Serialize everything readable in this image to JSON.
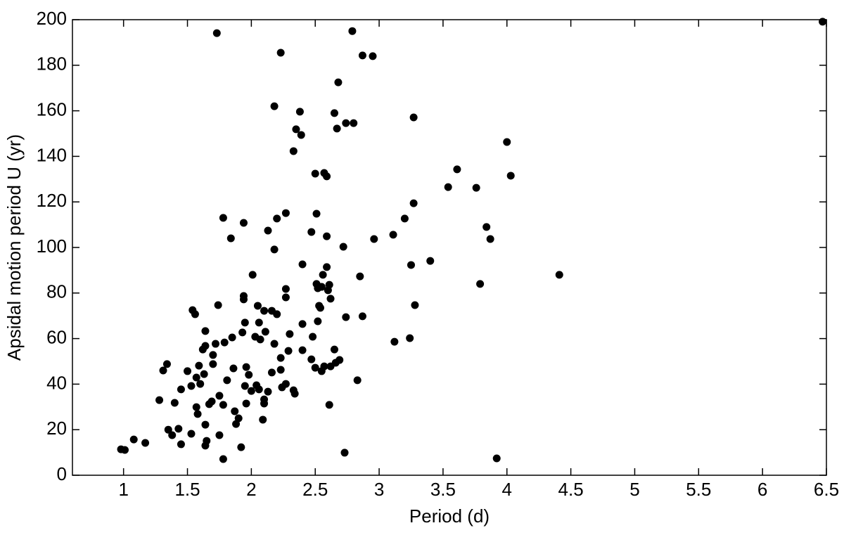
{
  "chart_data": {
    "type": "scatter",
    "xlabel": "Period (d)",
    "ylabel": "Apsidal motion period  U (yr)",
    "color": "#000000",
    "xlim": [
      0.6,
      6.5
    ],
    "xticks": [
      1,
      1.5,
      2,
      2.5,
      3,
      3.5,
      4,
      4.5,
      5,
      5.5,
      6,
      6.5
    ],
    "ylim": [
      0,
      200
    ],
    "yticks": [
      0,
      20,
      40,
      60,
      80,
      100,
      120,
      140,
      160,
      180,
      200
    ],
    "x": [
      0.98,
      1.01,
      1.08,
      1.17,
      1.28,
      1.31,
      1.34,
      1.35,
      1.38,
      1.4,
      1.43,
      1.45,
      1.45,
      1.5,
      1.53,
      1.53,
      1.54,
      1.56,
      1.57,
      1.57,
      1.58,
      1.59,
      1.6,
      1.62,
      1.63,
      1.64,
      1.64,
      1.64,
      1.64,
      1.65,
      1.67,
      1.69,
      1.7,
      1.7,
      1.72,
      1.73,
      1.74,
      1.75,
      1.75,
      1.78,
      1.78,
      1.78,
      1.79,
      1.81,
      1.84,
      1.85,
      1.86,
      1.87,
      1.88,
      1.9,
      1.92,
      1.93,
      1.94,
      1.94,
      1.94,
      1.95,
      1.95,
      1.96,
      1.96,
      1.98,
      2.0,
      2.01,
      2.03,
      2.04,
      2.05,
      2.06,
      2.06,
      2.07,
      2.09,
      2.1,
      2.1,
      2.1,
      2.11,
      2.13,
      2.13,
      2.16,
      2.16,
      2.18,
      2.18,
      2.18,
      2.2,
      2.2,
      2.23,
      2.23,
      2.23,
      2.24,
      2.27,
      2.27,
      2.27,
      2.27,
      2.29,
      2.3,
      2.33,
      2.33,
      2.34,
      2.35,
      2.38,
      2.39,
      2.4,
      2.4,
      2.4,
      2.47,
      2.47,
      2.48,
      2.5,
      2.5,
      2.51,
      2.51,
      2.52,
      2.52,
      2.53,
      2.54,
      2.55,
      2.55,
      2.56,
      2.57,
      2.57,
      2.59,
      2.59,
      2.59,
      2.6,
      2.61,
      2.61,
      2.62,
      2.62,
      2.65,
      2.65,
      2.66,
      2.67,
      2.68,
      2.69,
      2.72,
      2.73,
      2.74,
      2.74,
      2.79,
      2.8,
      2.83,
      2.85,
      2.87,
      2.87,
      2.95,
      2.96,
      3.11,
      3.12,
      3.2,
      3.24,
      3.25,
      3.27,
      3.27,
      3.28,
      3.4,
      3.54,
      3.61,
      3.76,
      3.79,
      3.84,
      3.87,
      3.92,
      4.0,
      4.03,
      4.41,
      6.47
    ],
    "values": [
      11.4,
      11.1,
      15.7,
      14.2,
      33,
      46,
      48.8,
      20,
      17.6,
      31.8,
      20.4,
      13.6,
      37.7,
      45.7,
      39.2,
      18.2,
      72.5,
      70.7,
      42.9,
      29.9,
      26.9,
      48.1,
      40.1,
      55.2,
      44.4,
      56.8,
      63.3,
      22.2,
      13,
      15.1,
      31.2,
      32.4,
      48.8,
      52.8,
      57.7,
      194.1,
      74.7,
      34.9,
      17.6,
      113,
      7.1,
      30.9,
      58.3,
      41.7,
      104,
      60.5,
      46.9,
      28.1,
      22.5,
      25,
      12.3,
      62.7,
      110.8,
      78.7,
      77.2,
      67,
      39.2,
      31.5,
      47.5,
      44.1,
      37,
      88,
      60.8,
      39.5,
      74.4,
      37.7,
      67,
      59.6,
      24.4,
      31.5,
      33.3,
      72.2,
      63,
      36.7,
      107.4,
      72.2,
      45.1,
      162,
      99.1,
      57.7,
      112.7,
      70.7,
      185.5,
      51.5,
      46.3,
      38.6,
      115.1,
      78.1,
      81.8,
      40.1,
      54.6,
      62,
      142.3,
      37.3,
      35.8,
      151.9,
      159.6,
      149.4,
      66.4,
      92.6,
      54.9,
      50.9,
      106.8,
      60.8,
      132.4,
      47.2,
      114.8,
      84,
      67.6,
      82.1,
      74.4,
      73.5,
      82.7,
      45.7,
      88,
      132.7,
      47.8,
      131.2,
      91.4,
      104.9,
      81.2,
      30.9,
      83.6,
      47.8,
      77.5,
      159,
      55.2,
      49.4,
      152.2,
      172.5,
      50.6,
      100.3,
      9.9,
      154.6,
      69.4,
      195,
      154.6,
      41.7,
      87.3,
      184.3,
      69.8,
      184,
      103.7,
      105.6,
      58.6,
      112.7,
      60.2,
      92.3,
      157.1,
      119.4,
      74.7,
      94.1,
      126.5,
      134.3,
      126.2,
      84,
      109,
      103.7,
      7.4,
      146.3,
      131.5,
      88,
      199.1
    ]
  }
}
